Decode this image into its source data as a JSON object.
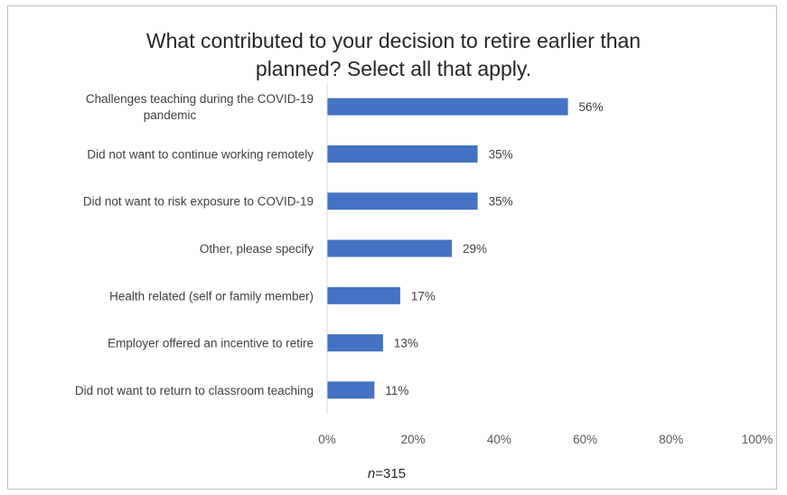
{
  "chart_data": {
    "type": "bar",
    "orientation": "horizontal",
    "title_lines": [
      "What contributed to your decision to retire earlier than",
      "planned? Select all that apply."
    ],
    "categories": [
      [
        "Challenges teaching during the COVID-19",
        "pandemic"
      ],
      [
        "Did not want to continue working remotely"
      ],
      [
        "Did not want to risk exposure to COVID-19"
      ],
      [
        "Other, please specify"
      ],
      [
        "Health related (self or family member)"
      ],
      [
        "Employer offered an incentive to retire"
      ],
      [
        "Did not want to return to classroom teaching"
      ]
    ],
    "values": [
      56,
      35,
      35,
      29,
      17,
      13,
      11
    ],
    "value_labels": [
      "56%",
      "35%",
      "35%",
      "29%",
      "17%",
      "13%",
      "11%"
    ],
    "xlim": [
      0,
      100
    ],
    "x_ticks": [
      "0%",
      "20%",
      "40%",
      "60%",
      "80%",
      "100%"
    ],
    "x_tick_values": [
      0,
      20,
      40,
      60,
      80,
      100
    ],
    "grid": false,
    "bar_color": "#4472c4",
    "note_italic": "n",
    "note_rest": "=315"
  }
}
